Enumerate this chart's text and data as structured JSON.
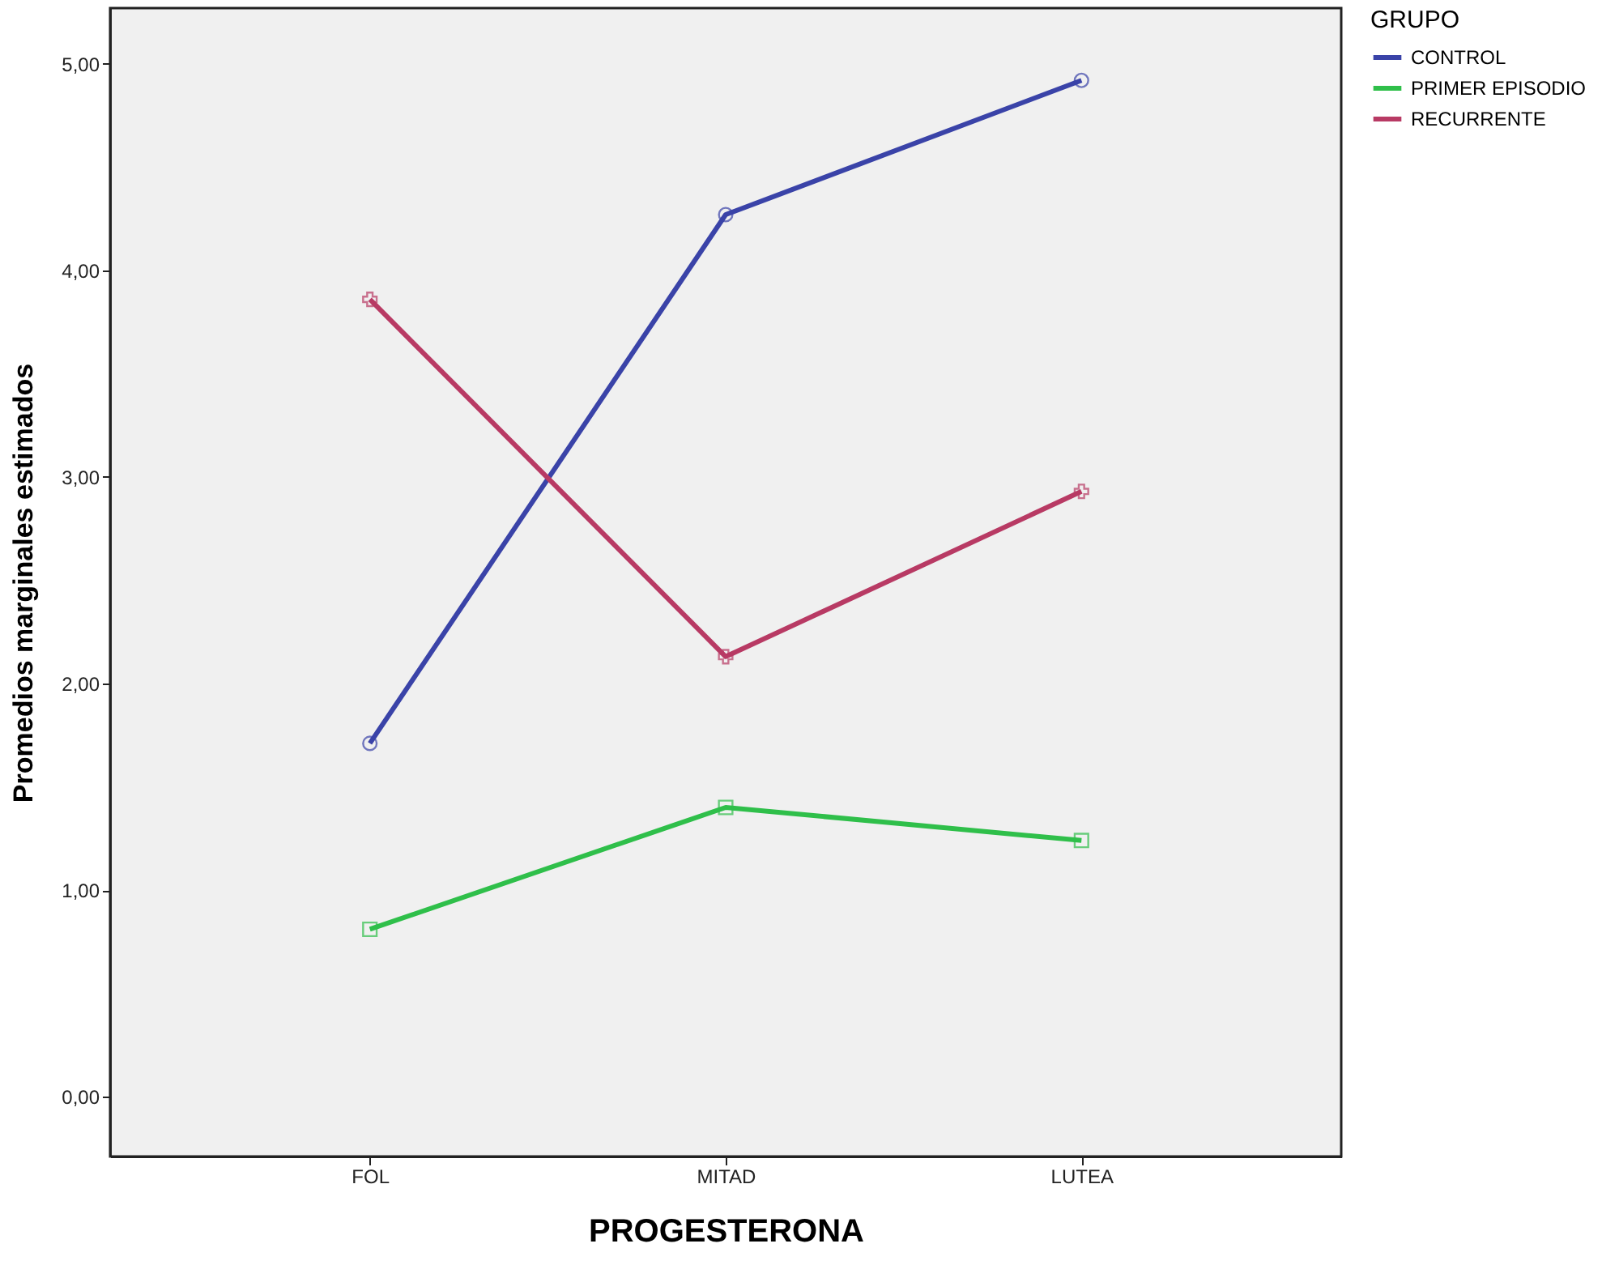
{
  "chart_data": {
    "type": "line",
    "xlabel": "PROGESTERONA",
    "ylabel": "Promedios marginales estimados",
    "legend_title": "GRUPO",
    "legend": "top right",
    "grid": false,
    "categories": [
      "FOL",
      "MITAD",
      "LUTEA"
    ],
    "ylim": [
      -0.29,
      5.27
    ],
    "yticks": [
      {
        "value": 0,
        "label": "0,00"
      },
      {
        "value": 1,
        "label": "1,00"
      },
      {
        "value": 2,
        "label": "2,00"
      },
      {
        "value": 3,
        "label": "3,00"
      },
      {
        "value": 4,
        "label": "4,00"
      },
      {
        "value": 5,
        "label": "5,00"
      }
    ],
    "series": [
      {
        "name": "CONTROL",
        "color": "#3a43a8",
        "marker": "circle",
        "values": [
          1.71,
          4.27,
          4.92
        ]
      },
      {
        "name": "PRIMER EPISODIO",
        "color": "#2fbf4a",
        "marker": "square",
        "values": [
          0.81,
          1.4,
          1.24
        ]
      },
      {
        "name": "RECURRENTE",
        "color": "#b83a64",
        "marker": "cross",
        "values": [
          3.86,
          2.13,
          2.93
        ]
      }
    ]
  }
}
